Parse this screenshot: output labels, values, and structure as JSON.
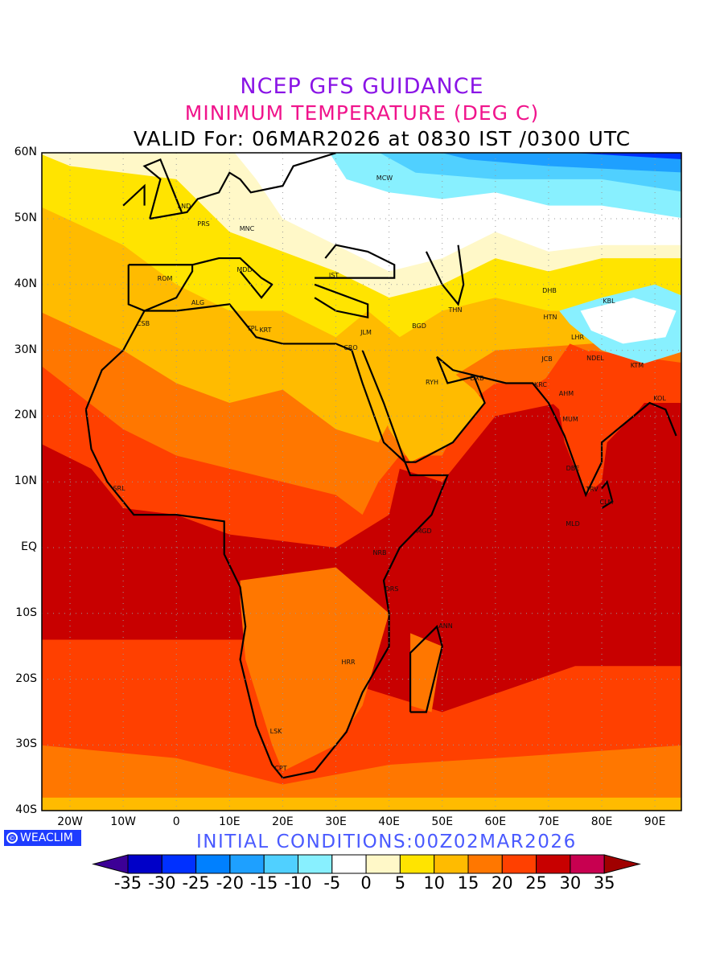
{
  "titles": {
    "line1": "NCEP GFS GUIDANCE",
    "line2": "MINIMUM TEMPERATURE (DEG C)",
    "line3": "VALID For: 06MAR2026 at 0830 IST /0300 UTC"
  },
  "map": {
    "lat_labels": [
      "60N",
      "50N",
      "40N",
      "30N",
      "20N",
      "10N",
      "EQ",
      "10S",
      "20S",
      "30S",
      "40S"
    ],
    "lon_labels": [
      "20W",
      "10W",
      "0",
      "10E",
      "20E",
      "30E",
      "40E",
      "50E",
      "60E",
      "70E",
      "80E",
      "90E"
    ],
    "extent": {
      "lon": [
        -25.3,
        95
      ],
      "lat": [
        -40,
        60
      ]
    },
    "cities": [
      "MCW",
      "LND",
      "PRS",
      "MNC",
      "ROM",
      "MDD",
      "ALG",
      "CSB",
      "TPL",
      "KRT",
      "IST",
      "CRO",
      "JLM",
      "BGD",
      "THN",
      "DHB",
      "KBL",
      "HTN",
      "LHR",
      "JCB",
      "NDEL",
      "KTM",
      "DXB",
      "KRC",
      "AHM",
      "KOL",
      "MUM",
      "DBE",
      "TRV",
      "CLM",
      "MLD",
      "RYH",
      "SRL",
      "MGD",
      "NRB",
      "DRS",
      "ANN",
      "HRR",
      "LSK",
      "CPT"
    ]
  },
  "logo": {
    "text": "WEACLIM",
    "symbol": "©"
  },
  "initial_conditions": "INITIAL  CONDITIONS:00Z02MAR2026",
  "colorbar": {
    "labels": [
      "-35",
      "-30",
      "-25",
      "-20",
      "-15",
      "-10",
      "-5",
      "0",
      "5",
      "10",
      "15",
      "20",
      "25",
      "30",
      "35"
    ],
    "under_color": "#3c0096",
    "over_color": "#a00000",
    "colors": [
      "#0000c8",
      "#0030ff",
      "#0080ff",
      "#1ea0ff",
      "#50d0ff",
      "#88f0ff",
      "#ffffff",
      "#fff8c8",
      "#ffe400",
      "#ffbb00",
      "#ff7700",
      "#ff4000",
      "#c80000",
      "#c80050"
    ]
  }
}
